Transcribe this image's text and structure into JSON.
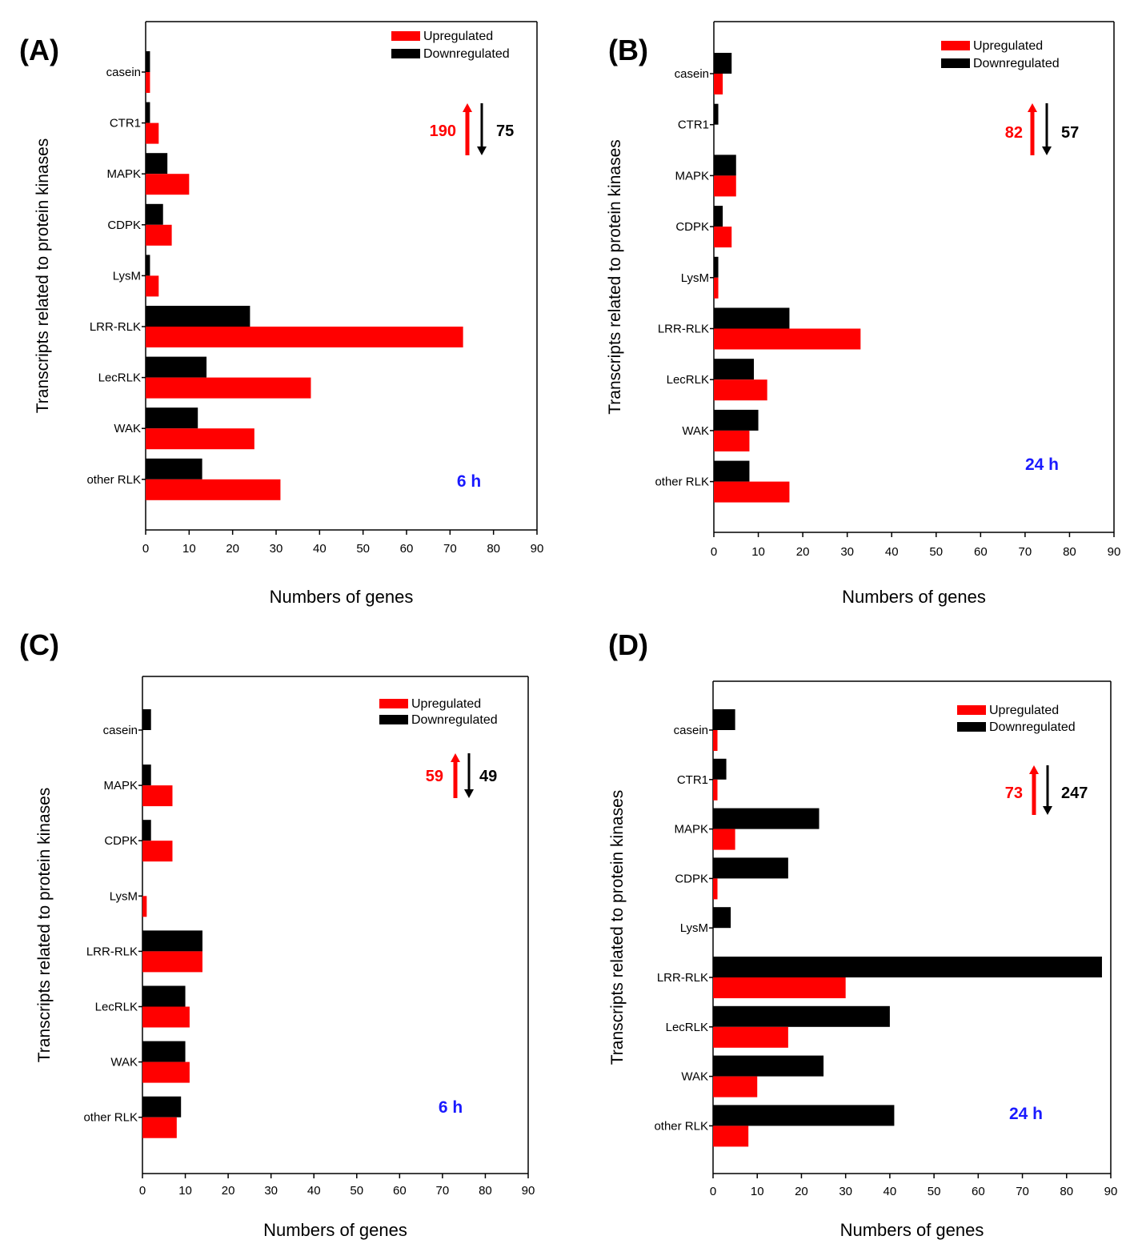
{
  "figure": {
    "xlabel": "Numbers of genes",
    "ylabel": "Transcripts related to protein kinases",
    "legend": {
      "up": "Upregulated",
      "down": "Downregulated"
    },
    "colors": {
      "up": "#ff0000",
      "down": "#000000",
      "time": "#1a1aff",
      "axis": "#000000"
    }
  },
  "chart_data": [
    {
      "type": "bar",
      "orientation": "horizontal",
      "panel_label": "(A)",
      "time_label": "6 h",
      "up_total": "190",
      "down_total": "75",
      "categories": [
        "casein",
        "CTR1",
        "MAPK",
        "CDPK",
        "LysM",
        "LRR-RLK",
        "LecRLK",
        "WAK",
        "other RLK"
      ],
      "series": [
        {
          "name": "Downregulated",
          "values": [
            1,
            1,
            5,
            4,
            1,
            24,
            14,
            12,
            13
          ]
        },
        {
          "name": "Upregulated",
          "values": [
            1,
            3,
            10,
            6,
            3,
            73,
            38,
            25,
            31
          ]
        }
      ],
      "xlim": [
        0,
        90
      ],
      "xticks": [
        0,
        10,
        20,
        30,
        40,
        50,
        60,
        70,
        80,
        90
      ],
      "xlabel": "Numbers of genes",
      "ylabel": "Transcripts related to protein kinases",
      "legend_position": "top-right"
    },
    {
      "type": "bar",
      "orientation": "horizontal",
      "panel_label": "(B)",
      "time_label": "24 h",
      "up_total": "82",
      "down_total": "57",
      "categories": [
        "casein",
        "CTR1",
        "MAPK",
        "CDPK",
        "LysM",
        "LRR-RLK",
        "LecRLK",
        "WAK",
        "other RLK"
      ],
      "series": [
        {
          "name": "Downregulated",
          "values": [
            4,
            1,
            5,
            2,
            1,
            17,
            9,
            10,
            8
          ]
        },
        {
          "name": "Upregulated",
          "values": [
            2,
            0,
            5,
            4,
            1,
            33,
            12,
            8,
            17
          ]
        }
      ],
      "xlim": [
        0,
        90
      ],
      "xticks": [
        0,
        10,
        20,
        30,
        40,
        50,
        60,
        70,
        80,
        90
      ],
      "xlabel": "Numbers of genes",
      "ylabel": "Transcripts related to protein kinases",
      "legend_position": "top-right"
    },
    {
      "type": "bar",
      "orientation": "horizontal",
      "panel_label": "(C)",
      "time_label": "6 h",
      "up_total": "59",
      "down_total": "49",
      "categories": [
        "casein",
        "MAPK",
        "CDPK",
        "LysM",
        "LRR-RLK",
        "LecRLK",
        "WAK",
        "other RLK"
      ],
      "series": [
        {
          "name": "Downregulated",
          "values": [
            2,
            2,
            2,
            0,
            14,
            10,
            10,
            9
          ]
        },
        {
          "name": "Upregulated",
          "values": [
            0,
            7,
            7,
            1,
            14,
            11,
            11,
            8
          ]
        }
      ],
      "xlim": [
        0,
        90
      ],
      "xticks": [
        0,
        10,
        20,
        30,
        40,
        50,
        60,
        70,
        80,
        90
      ],
      "xlabel": "Numbers of genes",
      "ylabel": "Transcripts related to protein kinases",
      "legend_position": "top-right"
    },
    {
      "type": "bar",
      "orientation": "horizontal",
      "panel_label": "(D)",
      "time_label": "24 h",
      "up_total": "73",
      "down_total": "247",
      "categories": [
        "casein",
        "CTR1",
        "MAPK",
        "CDPK",
        "LysM",
        "LRR-RLK",
        "LecRLK",
        "WAK",
        "other RLK"
      ],
      "series": [
        {
          "name": "Downregulated",
          "values": [
            5,
            3,
            24,
            17,
            4,
            88,
            40,
            25,
            41
          ]
        },
        {
          "name": "Upregulated",
          "values": [
            1,
            1,
            5,
            1,
            0,
            30,
            17,
            10,
            8
          ]
        }
      ],
      "xlim": [
        0,
        90
      ],
      "xticks": [
        0,
        10,
        20,
        30,
        40,
        50,
        60,
        70,
        80,
        90
      ],
      "xlabel": "Numbers of genes",
      "ylabel": "Transcripts related to protein kinases",
      "legend_position": "top-right"
    }
  ]
}
